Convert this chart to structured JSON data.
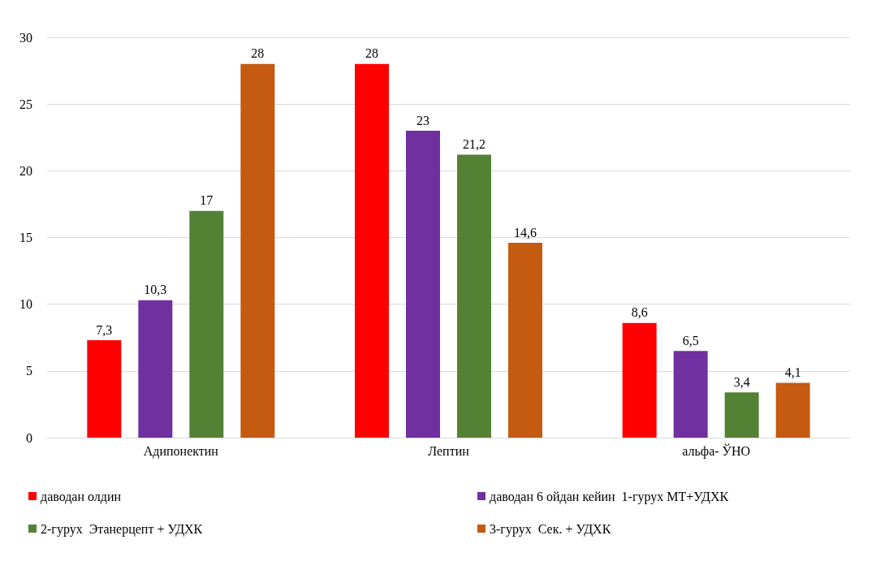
{
  "chart_data": {
    "type": "bar",
    "categories": [
      "Адипонектин",
      "Лептин",
      "альфа- ЎНО"
    ],
    "series": [
      {
        "name": "даводан олдин",
        "color": "#ff0000",
        "values": [
          7.3,
          28,
          8.6
        ],
        "value_labels": [
          "7,3",
          "28",
          "8,6"
        ]
      },
      {
        "name": "даводан 6 ойдан кейин  1-гурух МТ+УДХК",
        "color": "#7030a0",
        "values": [
          10.3,
          23,
          6.5
        ],
        "value_labels": [
          "10,3",
          "23",
          "6,5"
        ]
      },
      {
        "name": "2-гурух  Этанерцепт + УДХК",
        "color": "#548235",
        "values": [
          17,
          21.2,
          3.4
        ],
        "value_labels": [
          "17",
          "21,2",
          "3,4"
        ]
      },
      {
        "name": "3-гурух  Сек. + УДХК",
        "color": "#c55a11",
        "values": [
          28,
          14.6,
          4.1
        ],
        "value_labels": [
          "28",
          "14,6",
          "4,1"
        ]
      }
    ],
    "ylim": [
      0,
      30
    ],
    "yticks": [
      0,
      5,
      10,
      15,
      20,
      25,
      30
    ],
    "grid": "y",
    "legend": "bottom"
  }
}
